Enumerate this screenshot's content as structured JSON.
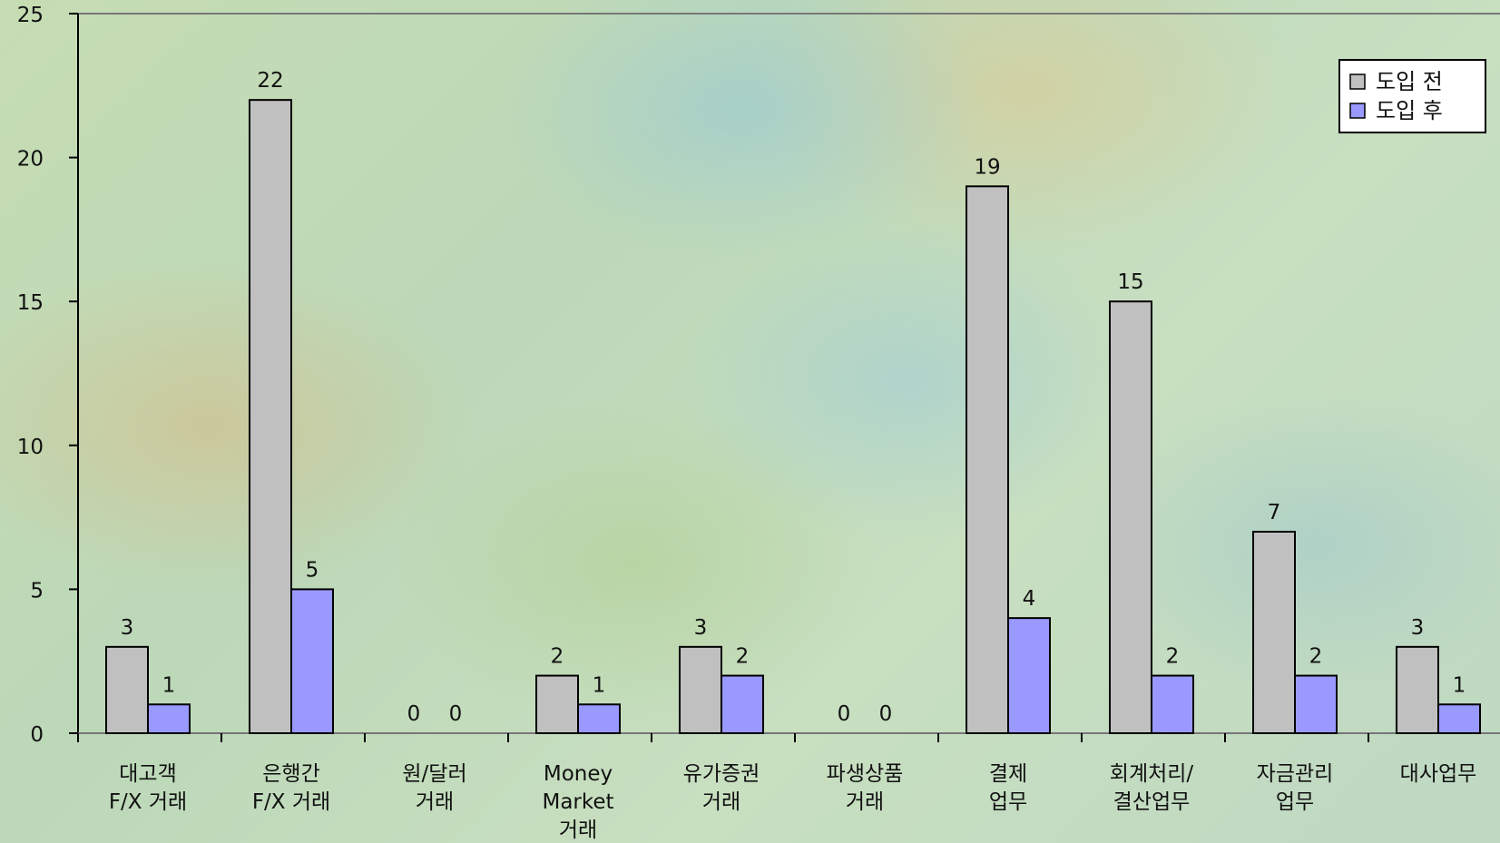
{
  "chart_data": {
    "type": "bar",
    "title": "",
    "xlabel": "",
    "ylabel": "",
    "ylim": [
      0,
      25
    ],
    "yticks": [
      0,
      5,
      10,
      15,
      20,
      25
    ],
    "grid": false,
    "legend_position": "top-right",
    "categories": [
      [
        "대고객",
        "F/X 거래"
      ],
      [
        "은행간",
        "F/X 거래"
      ],
      [
        "원/달러",
        "거래"
      ],
      [
        "Money",
        "Market",
        "거래"
      ],
      [
        "유가증권",
        "거래"
      ],
      [
        "파생상품",
        "거래"
      ],
      [
        "결제",
        "업무"
      ],
      [
        "회계처리/",
        "결산업무"
      ],
      [
        "자금관리",
        "업무"
      ],
      [
        "대사업무"
      ]
    ],
    "series": [
      {
        "name": "도입 전",
        "color": "#c0c0c0",
        "values": [
          3,
          22,
          0,
          2,
          3,
          0,
          19,
          15,
          7,
          3
        ]
      },
      {
        "name": "도입 후",
        "color": "#9999ff",
        "values": [
          1,
          5,
          0,
          1,
          2,
          0,
          4,
          2,
          2,
          1
        ]
      }
    ]
  }
}
